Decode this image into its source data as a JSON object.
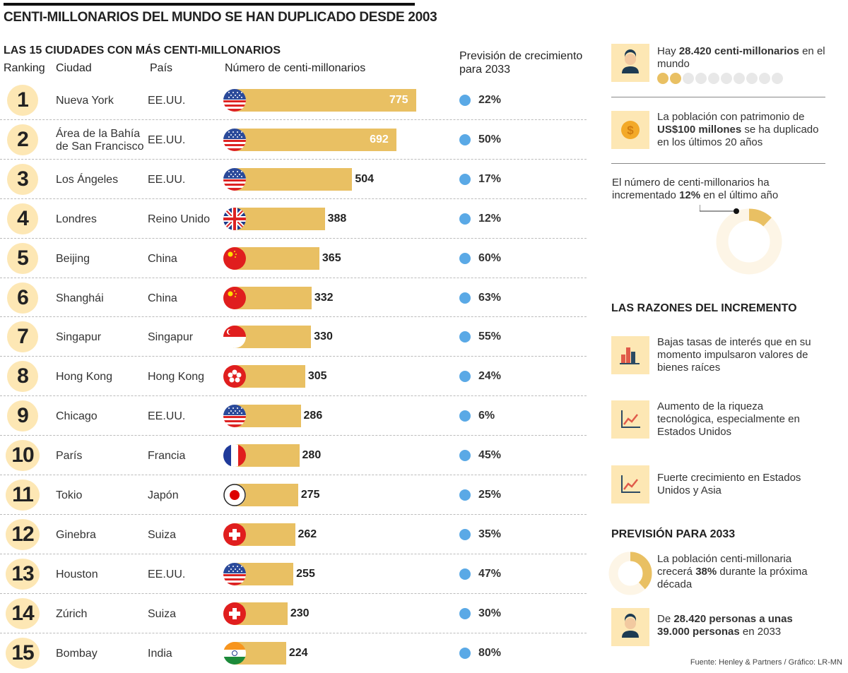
{
  "title": "CENTI-MILLONARIOS DEL MUNDO SE HAN DUPLICADO DESDE 2003",
  "chart_data": {
    "type": "bar",
    "title": "LAS 15 CIUDADES CON MÁS CENTI-MILLONARIOS",
    "headers": {
      "ranking": "Ranking",
      "city": "Ciudad",
      "country": "País",
      "value": "Número de centi-millonarios",
      "growth": "Previsión de crecimiento para 2033"
    },
    "rows": [
      {
        "rank": "1",
        "city": "Nueva York",
        "country": "EE.UU.",
        "flag": "us",
        "value": 775,
        "growth": "22%"
      },
      {
        "rank": "2",
        "city": "Área de la Bahía de San Francisco",
        "country": "EE.UU.",
        "flag": "us",
        "value": 692,
        "growth": "50%"
      },
      {
        "rank": "3",
        "city": "Los Ángeles",
        "country": "EE.UU.",
        "flag": "us",
        "value": 504,
        "growth": "17%"
      },
      {
        "rank": "4",
        "city": "Londres",
        "country": "Reino Unido",
        "flag": "uk",
        "value": 388,
        "growth": "12%"
      },
      {
        "rank": "5",
        "city": "Beijing",
        "country": "China",
        "flag": "cn",
        "value": 365,
        "growth": "60%"
      },
      {
        "rank": "6",
        "city": "Shanghái",
        "country": "China",
        "flag": "cn",
        "value": 332,
        "growth": "63%"
      },
      {
        "rank": "7",
        "city": "Singapur",
        "country": "Singapur",
        "flag": "sg",
        "value": 330,
        "growth": "55%"
      },
      {
        "rank": "8",
        "city": "Hong Kong",
        "country": "Hong Kong",
        "flag": "hk",
        "value": 305,
        "growth": "24%"
      },
      {
        "rank": "9",
        "city": "Chicago",
        "country": "EE.UU.",
        "flag": "us",
        "value": 286,
        "growth": "6%"
      },
      {
        "rank": "10",
        "city": "París",
        "country": "Francia",
        "flag": "fr",
        "value": 280,
        "growth": "45%"
      },
      {
        "rank": "11",
        "city": "Tokio",
        "country": "Japón",
        "flag": "jp",
        "value": 275,
        "growth": "25%"
      },
      {
        "rank": "12",
        "city": "Ginebra",
        "country": "Suiza",
        "flag": "ch",
        "value": 262,
        "growth": "35%"
      },
      {
        "rank": "13",
        "city": "Houston",
        "country": "EE.UU.",
        "flag": "us",
        "value": 255,
        "growth": "47%"
      },
      {
        "rank": "14",
        "city": "Zúrich",
        "country": "Suiza",
        "flag": "ch",
        "value": 230,
        "growth": "30%"
      },
      {
        "rank": "15",
        "city": "Bombay",
        "country": "India",
        "flag": "in",
        "value": 224,
        "growth": "80%"
      }
    ],
    "bar_color": "#e9c063",
    "dot_color": "#5aa9e6"
  },
  "side": {
    "fact1": {
      "pre": "Hay ",
      "bold": "28.420 centi-millonarios",
      "post": " en el mundo",
      "dots_filled": 2,
      "dots_total": 10
    },
    "fact2": {
      "pre": "La población con patrimonio de ",
      "bold": "US$100 millones",
      "post": " se ha duplicado en los últimos 20 años"
    },
    "fact3": {
      "pre": "El número de centi-millonarios ha incrementado ",
      "bold": "12%",
      "post": " en el último año",
      "percent": 12
    },
    "reasons_title": "LAS RAZONES DEL INCREMENTO",
    "reasons": [
      "Bajas tasas de interés que en su momento impulsaron valores de bienes raíces",
      "Aumento de la riqueza tecnológica, especialmente en Estados Unidos",
      "Fuerte crecimiento en Estados Unidos y Asia"
    ],
    "forecast_title": "PREVISIÓN PARA 2033",
    "forecast1": {
      "pre": "La población centi-millonaria crecerá ",
      "bold": "38%",
      "post": " durante la próxima década",
      "percent": 38
    },
    "forecast2": {
      "pre": "De ",
      "bold": "28.420 personas a unas 39.000 personas",
      "post": " en 2033"
    }
  },
  "source": "Fuente: Henley & Partners / Gráfico: LR-MN"
}
